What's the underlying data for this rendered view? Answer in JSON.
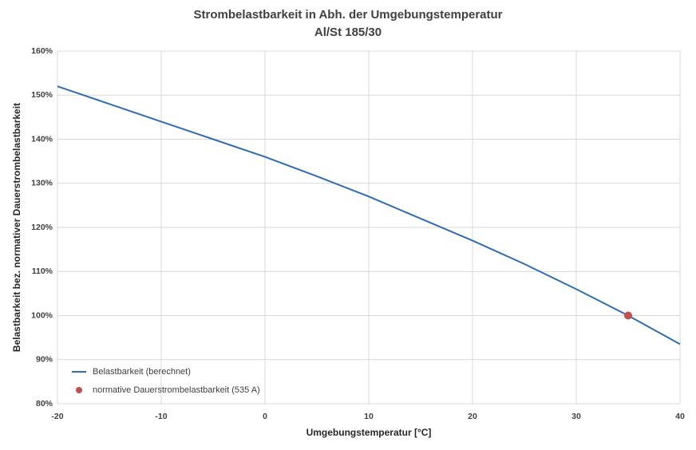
{
  "chart_data": {
    "type": "line",
    "title": "Strombelastbarkeit in Abh. der Umgebungstemperatur",
    "subtitle": "Al/St 185/30",
    "x_label": "Umgebungstemperatur [°C]",
    "y_label": "Belastbarkeit bez. normativer Dauerstrombelastbarkeit",
    "xlim": [
      -20,
      40
    ],
    "xticks": [
      -20,
      -10,
      0,
      10,
      20,
      30,
      40
    ],
    "ylim": [
      80,
      160
    ],
    "yticks": [
      {
        "value": 80,
        "label": "80%"
      },
      {
        "value": 90,
        "label": "90%"
      },
      {
        "value": 100,
        "label": "100%"
      },
      {
        "value": 110,
        "label": "110%"
      },
      {
        "value": 120,
        "label": "120%"
      },
      {
        "value": 130,
        "label": "130%"
      },
      {
        "value": 140,
        "label": "140%"
      },
      {
        "value": 150,
        "label": "150%"
      },
      {
        "value": 160,
        "label": "160%"
      }
    ],
    "grid": true,
    "legend": "lower left",
    "series": [
      {
        "name": "Belastbarkeit (berechnet)",
        "type": "line",
        "color": "#2e6db4",
        "x": [
          -20,
          -15,
          -10,
          -5,
          0,
          5,
          10,
          15,
          20,
          25,
          30,
          35,
          40
        ],
        "values": [
          152,
          148,
          144,
          140,
          136,
          131.6,
          127,
          122,
          117,
          111.7,
          106,
          100,
          93.5
        ]
      },
      {
        "name": "normative Dauerstrombelastbarkeit (535 A)",
        "type": "scatter",
        "color": "#c0504d",
        "x": [
          35
        ],
        "values": [
          100
        ]
      }
    ]
  }
}
